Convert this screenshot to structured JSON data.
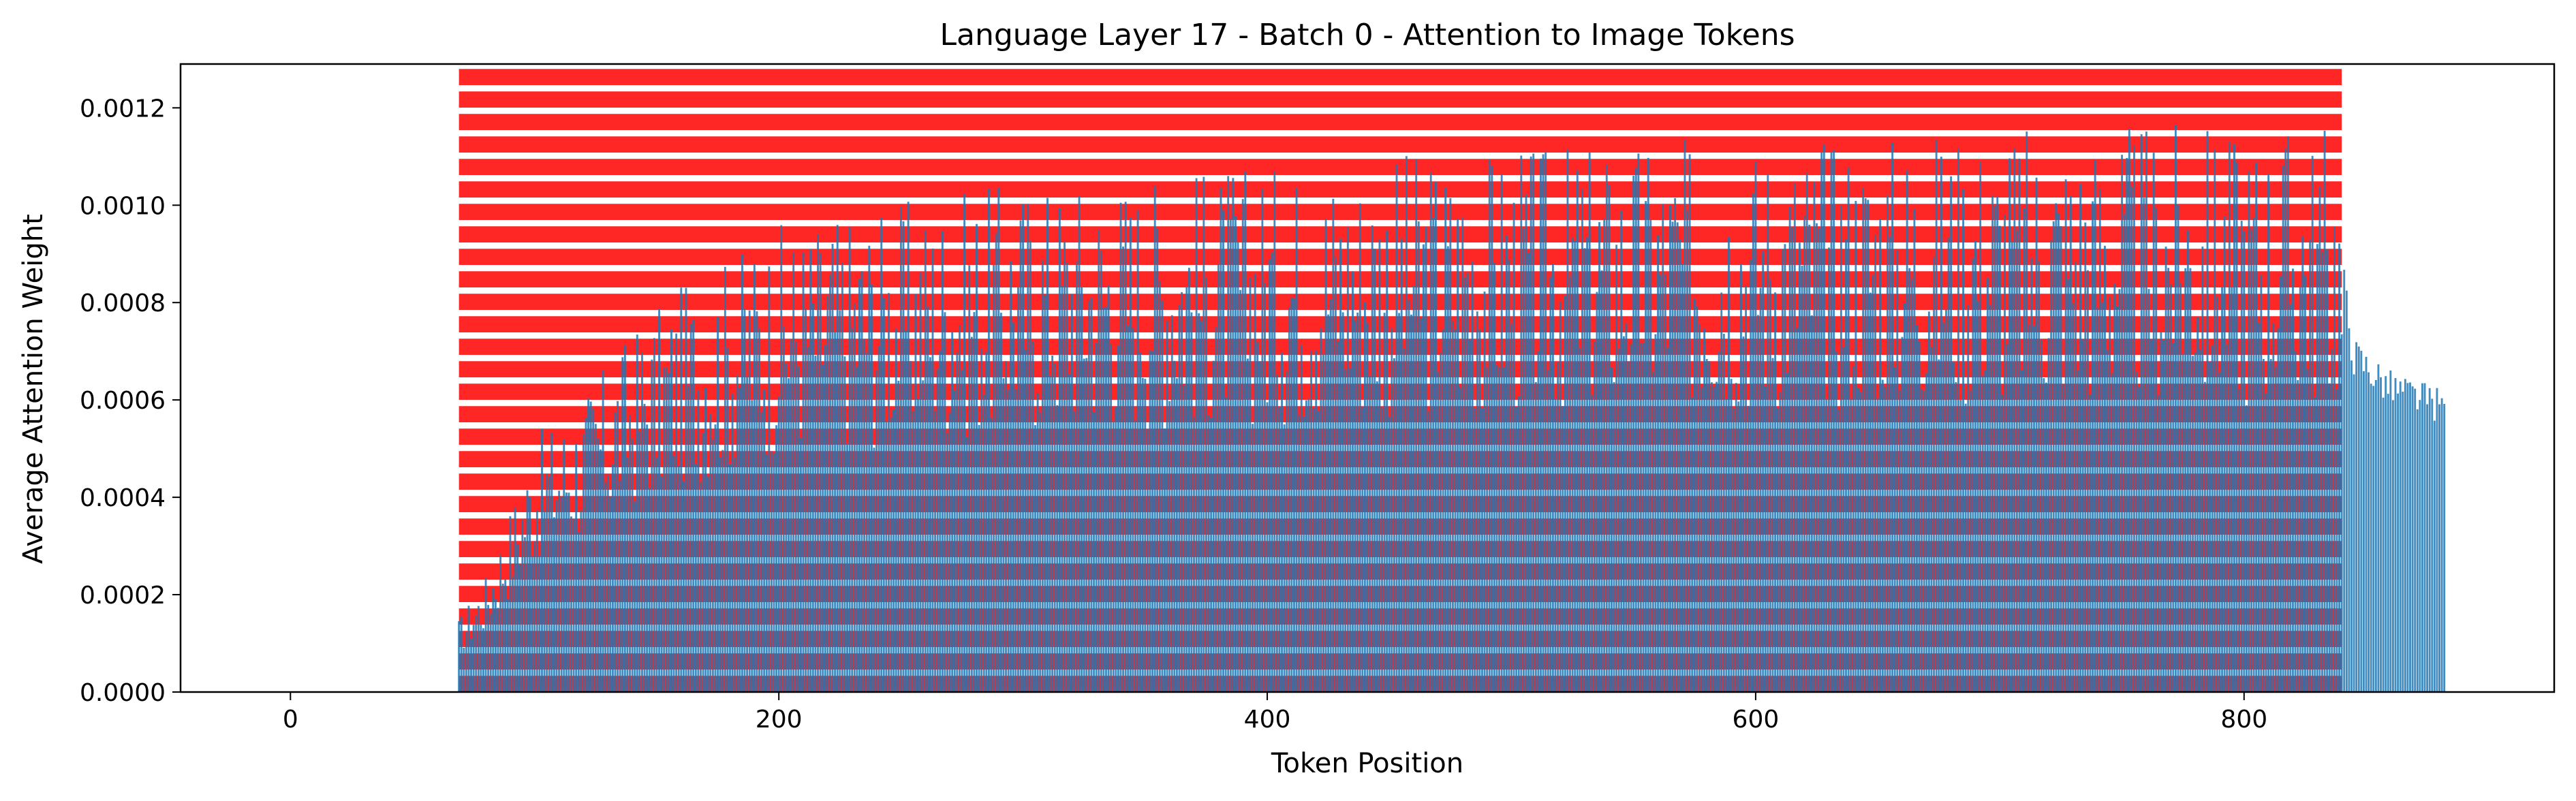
{
  "chart_data": {
    "type": "bar",
    "title": "Language Layer 17 - Batch 0 - Attention to Image Tokens",
    "xlabel": "Token Position",
    "ylabel": "Average Attention Weight",
    "xlim": [
      -45,
      927
    ],
    "ylim": [
      0,
      0.00129
    ],
    "x_ticks": [
      0,
      200,
      400,
      600,
      800
    ],
    "x_tick_labels": [
      "0",
      "200",
      "400",
      "600",
      "800"
    ],
    "y_ticks": [
      0,
      0.0002,
      0.0004,
      0.0006,
      0.0008,
      0.001,
      0.0012
    ],
    "y_tick_labels": [
      "0.0000",
      "0.0002",
      "0.0004",
      "0.0006",
      "0.0008",
      "0.0010",
      "0.0012"
    ],
    "bar_color": "#1f77b4",
    "highlight_color": "#ff0000",
    "highlight_span": {
      "x_start": 69,
      "x_end": 840,
      "y_max": 0.00128
    },
    "grid": false,
    "legend": "none",
    "series": [
      {
        "x_start": 69,
        "x_end": 882,
        "envelope_x": [
          69,
          80,
          100,
          120,
          140,
          160,
          180,
          200,
          250,
          300,
          350,
          400,
          450,
          500,
          550,
          600,
          650,
          700,
          750,
          800,
          838,
          841,
          845,
          860,
          882
        ],
        "envelope_y": [
          0.00014,
          0.00022,
          0.00048,
          0.00056,
          0.00068,
          0.00076,
          0.00082,
          0.00088,
          0.00092,
          0.00096,
          0.00098,
          0.00099,
          0.00101,
          0.00102,
          0.00103,
          0.00104,
          0.00105,
          0.00106,
          0.00106,
          0.00106,
          0.00106,
          0.00086,
          0.00072,
          0.00065,
          0.00061
        ]
      }
    ]
  }
}
